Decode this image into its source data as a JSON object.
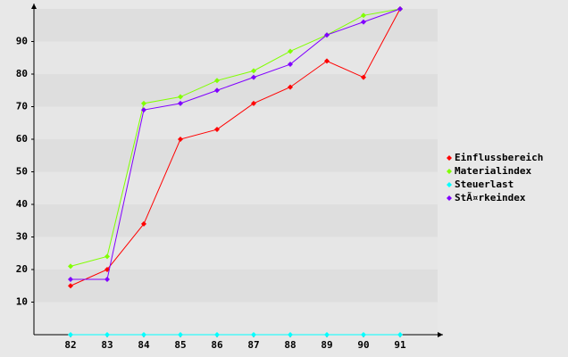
{
  "chart_data": {
    "type": "line",
    "categories": [
      "82",
      "83",
      "84",
      "85",
      "86",
      "87",
      "88",
      "89",
      "90",
      "91"
    ],
    "series": [
      {
        "name": "Einflussbereich",
        "color": "#ff0000",
        "values": [
          15,
          20,
          34,
          60,
          63,
          71,
          76,
          84,
          79,
          100
        ]
      },
      {
        "name": "Materialindex",
        "color": "#80ff00",
        "values": [
          21,
          24,
          71,
          73,
          78,
          81,
          87,
          92,
          98,
          100
        ]
      },
      {
        "name": "Steuerlast",
        "color": "#00ffff",
        "values": [
          0,
          0,
          0,
          0,
          0,
          0,
          0,
          0,
          0,
          0
        ]
      },
      {
        "name": "StÃ¤rkeindex",
        "color": "#8000ff",
        "values": [
          17,
          17,
          69,
          71,
          75,
          79,
          83,
          92,
          96,
          100
        ]
      }
    ],
    "ylim": [
      0,
      100
    ],
    "yticks": [
      10,
      20,
      30,
      40,
      50,
      60,
      70,
      80,
      90
    ],
    "grid": true,
    "legend": "right"
  }
}
